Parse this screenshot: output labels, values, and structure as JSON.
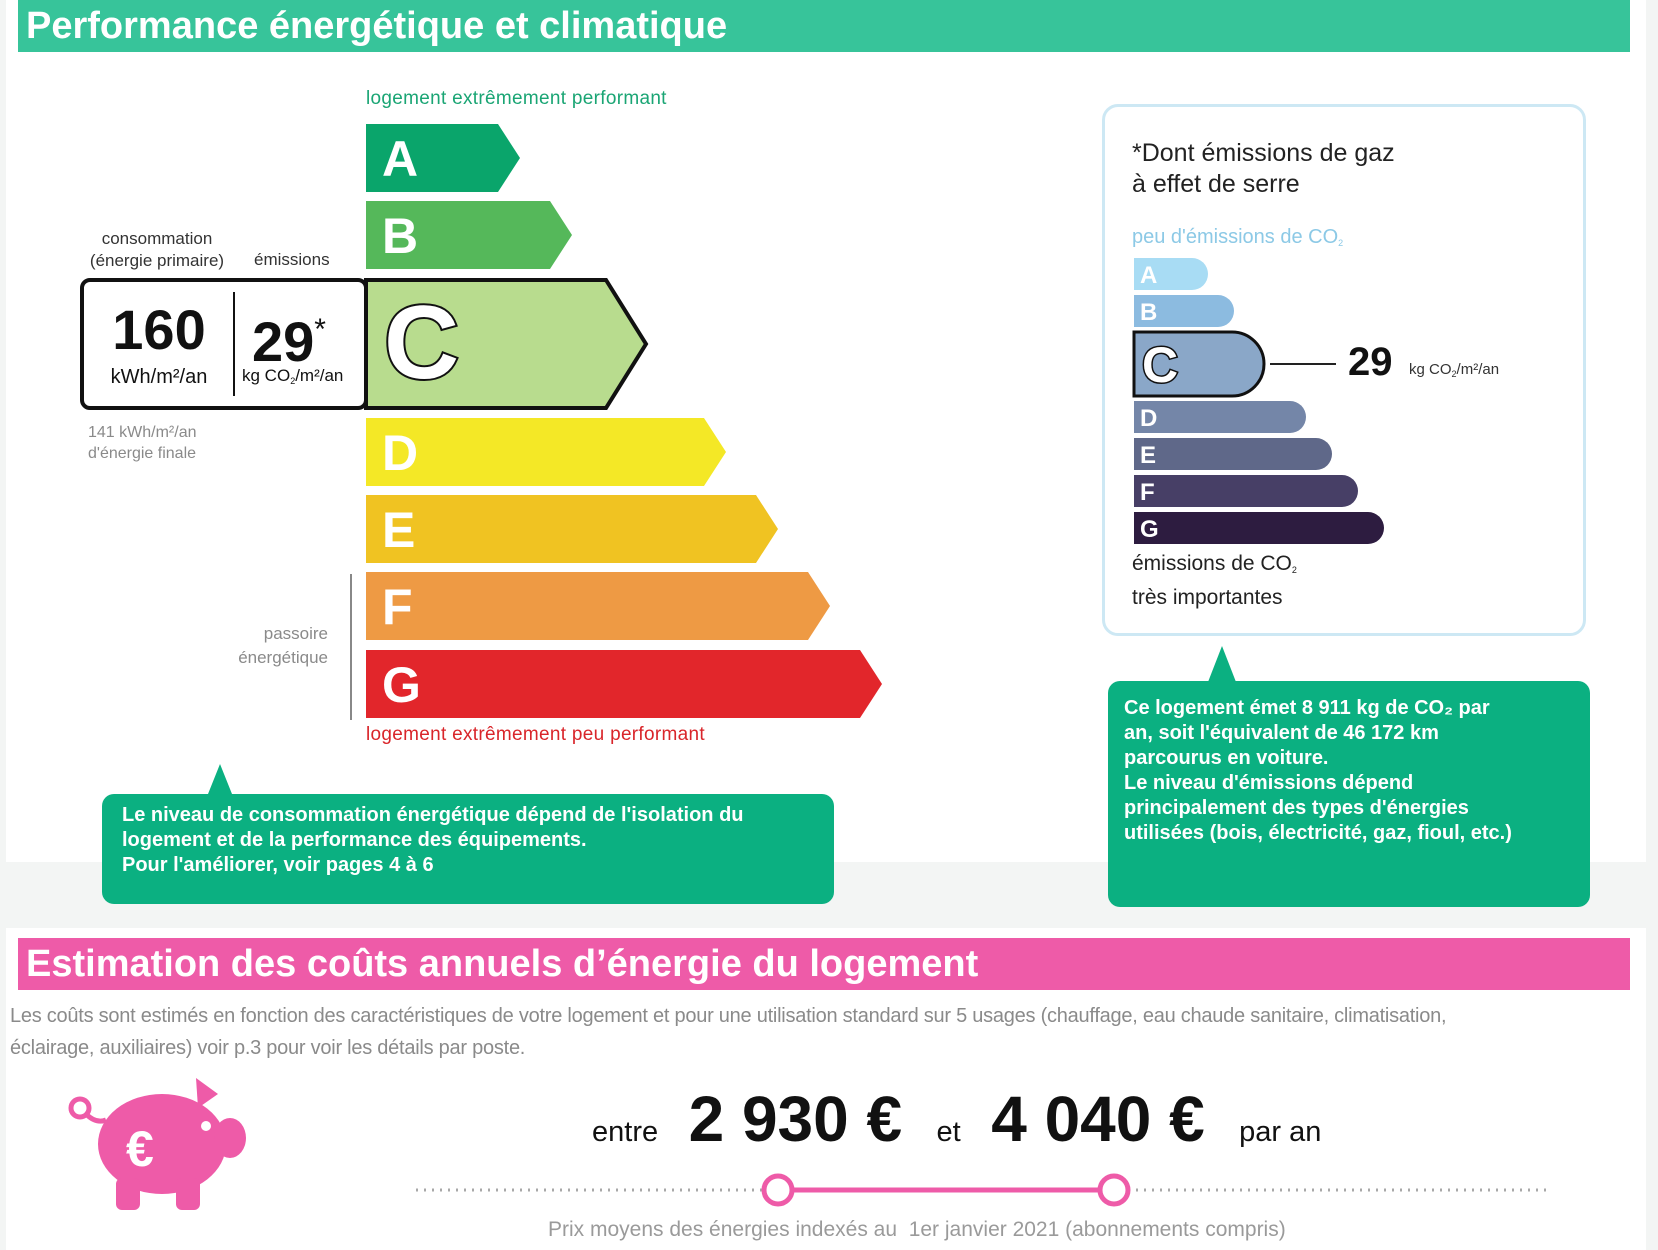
{
  "energy_section": {
    "title": "Performance énergétique et climatique",
    "color": "#37c49a",
    "top_label": "logement extrêmement performant",
    "bottom_label": "logement extrêmement peu performant",
    "classes": [
      {
        "letter": "A",
        "color": "#0aa56b"
      },
      {
        "letter": "B",
        "color": "#55b85a"
      },
      {
        "letter": "C",
        "color": "#b8dc8e"
      },
      {
        "letter": "D",
        "color": "#f4e826"
      },
      {
        "letter": "E",
        "color": "#f0c322"
      },
      {
        "letter": "F",
        "color": "#ee9a44"
      },
      {
        "letter": "G",
        "color": "#e2262b"
      }
    ],
    "current_class": "C",
    "consumption_header_1": "consommation",
    "consumption_header_2": "(énergie primaire)",
    "emissions_header": "émissions",
    "consumption_value": "160",
    "consumption_unit": "kWh/m²/an",
    "emissions_value": "29",
    "emissions_star": "*",
    "emissions_unit_prefix": "kg CO",
    "emissions_unit_sub": "2",
    "emissions_unit_suffix": "/m²/an",
    "final_energy_1": "141 kWh/m²/an",
    "final_energy_2": "d'énergie finale",
    "passoire_1": "passoire",
    "passoire_2": "énergétique",
    "bubble_lines": [
      "Le niveau de consommation énergétique dépend de l'isolation du",
      "logement et de la performance des équipements.",
      "Pour l'améliorer, voir pages 4 à 6"
    ]
  },
  "ges_box": {
    "title_1": "*Dont émissions de gaz",
    "title_2": "à effet de serre",
    "top_label_prefix": "peu d'émissions de CO",
    "top_label_sub": "2",
    "bottom_label_1_prefix": "émissions de CO",
    "bottom_label_1_sub": "2",
    "bottom_label_2": "très importantes",
    "classes": [
      {
        "letter": "A",
        "color": "#a8dcf4"
      },
      {
        "letter": "B",
        "color": "#8cbbe0"
      },
      {
        "letter": "C",
        "color": "#8aa7c8"
      },
      {
        "letter": "D",
        "color": "#7486a8"
      },
      {
        "letter": "E",
        "color": "#5f6889"
      },
      {
        "letter": "F",
        "color": "#473f66"
      },
      {
        "letter": "G",
        "color": "#2d1c40"
      }
    ],
    "current_class": "C",
    "value": "29",
    "unit_prefix": "kg CO",
    "unit_sub": "2",
    "unit_suffix": "/m²/an",
    "bubble_lines": [
      "Ce logement émet 8 911 kg de CO₂ par",
      "an, soit l'équivalent de 46 172 km",
      "parcourus en voiture.",
      "Le niveau d'émissions dépend",
      "principalement des types d'énergies",
      "utilisées (bois, électricité, gaz, fioul, etc.)"
    ]
  },
  "cost_section": {
    "title": "Estimation des coûts annuels d’énergie du logement",
    "color": "#ee5ba8",
    "description_1": "Les coûts sont estimés en fonction des caractéristiques de votre logement et pour une utilisation standard sur 5 usages (chauffage, eau chaude sanitaire, climatisation,",
    "description_2": "éclairage, auxiliaires) voir p.3 pour voir les détails par poste.",
    "between": "entre",
    "min_cost": "2 930 €",
    "and": "et",
    "max_cost": "4 040 €",
    "per_year": "par an",
    "price_note": "Prix moyens des énergies indexés au  1er janvier 2021 (abonnements compris)",
    "icon": "piggy-bank-euro-icon"
  }
}
